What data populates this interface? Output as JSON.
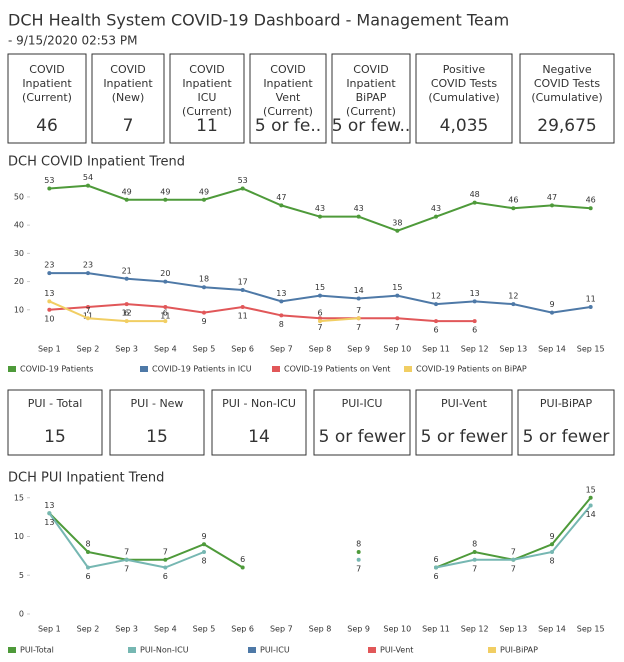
{
  "header": {
    "title": "DCH Health System COVID-19 Dashboard - Management Team",
    "subtitle": " - 9/15/2020 02:53 PM"
  },
  "kpis_top": [
    {
      "label": "COVID Inpatient (Current)",
      "value": "46"
    },
    {
      "label": "COVID Inpatient (New)",
      "value": "7"
    },
    {
      "label": "COVID Inpatient ICU (Current)",
      "value": "11"
    },
    {
      "label": "COVID Inpatient Vent (Current)",
      "value": "5 or fe.."
    },
    {
      "label": "COVID Inpatient BiPAP (Current)",
      "value": "5 or few.."
    },
    {
      "label": "Positive COVID Tests (Cumulative)",
      "value": "4,035"
    },
    {
      "label": "Negative COVID Tests (Cumulative)",
      "value": "29,675"
    }
  ],
  "kpis_bottom": [
    {
      "label": "PUI - Total",
      "value": "15"
    },
    {
      "label": "PUI - New",
      "value": "15"
    },
    {
      "label": "PUI - Non-ICU",
      "value": "14"
    },
    {
      "label": "PUI-ICU",
      "value": "5 or fewer"
    },
    {
      "label": "PUI-Vent",
      "value": "5 or fewer"
    },
    {
      "label": "PUI-BiPAP",
      "value": "5 or fewer"
    }
  ],
  "chart_data": [
    {
      "type": "line",
      "title": "DCH COVID Inpatient Trend",
      "categories": [
        "Sep 1",
        "Sep 2",
        "Sep 3",
        "Sep 4",
        "Sep 5",
        "Sep 6",
        "Sep 7",
        "Sep 8",
        "Sep 9",
        "Sep 10",
        "Sep 11",
        "Sep 12",
        "Sep 13",
        "Sep 14",
        "Sep 15"
      ],
      "ylim": [
        0,
        56
      ],
      "yticks": [
        10,
        20,
        30,
        40,
        50
      ],
      "series": [
        {
          "name": "COVID-19 Patients",
          "color": "#4e9a3a",
          "values": [
            53,
            54,
            49,
            49,
            49,
            53,
            47,
            43,
            43,
            38,
            43,
            48,
            46,
            47,
            46
          ]
        },
        {
          "name": "COVID-19 Patients in ICU",
          "color": "#4e79a7",
          "values": [
            23,
            23,
            21,
            20,
            18,
            17,
            13,
            15,
            14,
            15,
            12,
            13,
            12,
            9,
            11
          ]
        },
        {
          "name": "COVID-19 Patients on Vent",
          "color": "#e15759",
          "values": [
            10,
            11,
            12,
            11,
            9,
            11,
            8,
            7,
            7,
            7,
            6,
            6,
            null,
            null,
            null
          ]
        },
        {
          "name": "COVID-19 Patients on BiPAP",
          "color": "#f1ce63",
          "values": [
            13,
            7,
            6,
            6,
            null,
            null,
            null,
            6,
            7,
            null,
            null,
            null,
            null,
            null,
            null
          ]
        }
      ]
    },
    {
      "type": "line",
      "title": "DCH PUI Inpatient Trend",
      "categories": [
        "Sep 1",
        "Sep 2",
        "Sep 3",
        "Sep 4",
        "Sep 5",
        "Sep 6",
        "Sep 7",
        "Sep 8",
        "Sep 9",
        "Sep 10",
        "Sep 11",
        "Sep 12",
        "Sep 13",
        "Sep 14",
        "Sep 15"
      ],
      "ylim": [
        0,
        16
      ],
      "yticks": [
        0,
        5,
        10,
        15
      ],
      "series": [
        {
          "name": "PUI-Total",
          "color": "#4e9a3a",
          "values": [
            13,
            8,
            7,
            7,
            9,
            6,
            null,
            null,
            8,
            null,
            6,
            8,
            7,
            9,
            15
          ]
        },
        {
          "name": "PUI-Non-ICU",
          "color": "#76b7b2",
          "values": [
            13,
            6,
            7,
            6,
            8,
            null,
            null,
            null,
            7,
            null,
            6,
            7,
            7,
            8,
            14
          ]
        },
        {
          "name": "PUI-ICU",
          "color": "#4e79a7",
          "values": [
            null,
            null,
            null,
            null,
            null,
            null,
            null,
            null,
            null,
            null,
            null,
            null,
            null,
            null,
            null
          ]
        },
        {
          "name": "PUI-Vent",
          "color": "#e15759",
          "values": [
            null,
            null,
            null,
            null,
            null,
            null,
            null,
            null,
            null,
            null,
            null,
            null,
            null,
            null,
            null
          ]
        },
        {
          "name": "PUI-BiPAP",
          "color": "#f1ce63",
          "values": [
            null,
            null,
            null,
            null,
            null,
            null,
            null,
            null,
            null,
            null,
            null,
            null,
            null,
            null,
            null
          ]
        }
      ]
    }
  ]
}
